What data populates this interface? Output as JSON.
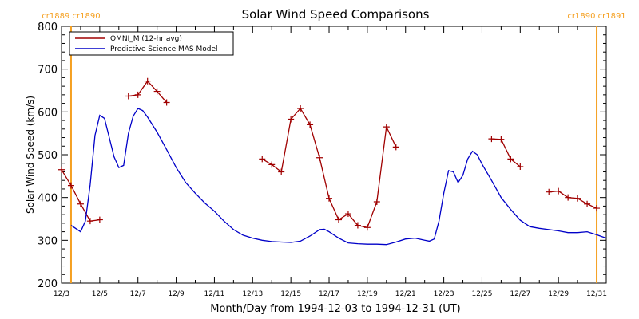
{
  "chart_data": {
    "type": "line",
    "title": "Solar Wind Speed Comparisons",
    "xlabel": "Month/Day from 1994-12-03 to 1994-12-31 (UT)",
    "ylabel": "Solar Wind Speed (km/s)",
    "xlim": [
      "1994-12-03T00:00",
      "1994-12-31T12:00"
    ],
    "ylim": [
      200,
      800
    ],
    "x_tick_labels": [
      "12/3",
      "12/5",
      "12/7",
      "12/9",
      "12/11",
      "12/13",
      "12/15",
      "12/17",
      "12/19",
      "12/21",
      "12/23",
      "12/25",
      "12/27",
      "12/29",
      "12/31"
    ],
    "x_tick_dates": [
      "1994-12-03",
      "1994-12-05",
      "1994-12-07",
      "1994-12-09",
      "1994-12-11",
      "1994-12-13",
      "1994-12-15",
      "1994-12-17",
      "1994-12-19",
      "1994-12-21",
      "1994-12-23",
      "1994-12-25",
      "1994-12-27",
      "1994-12-29",
      "1994-12-31"
    ],
    "y_ticks": [
      200,
      300,
      400,
      500,
      600,
      700,
      800
    ],
    "legend_position": "top-left",
    "carrington_rotations": [
      {
        "label": "cr1889 cr1890",
        "x": "1994-12-03T12:00",
        "color": "#f5a021"
      },
      {
        "label": "cr1890 cr1891",
        "x": "1994-12-31T00:00",
        "color": "#f5a021"
      }
    ],
    "series": [
      {
        "name": "OMNI_M (12-hr avg)",
        "color": "#a00000",
        "marker": "plus",
        "segments": [
          [
            [
              "1994-12-03T00:00",
              465
            ],
            [
              "1994-12-03T12:00",
              428
            ],
            [
              "1994-12-04T00:00",
              385
            ],
            [
              "1994-12-04T12:00",
              345
            ],
            [
              "1994-12-05T00:00",
              348
            ]
          ],
          [
            [
              "1994-12-06T12:00",
              637
            ],
            [
              "1994-12-07T00:00",
              640
            ],
            [
              "1994-12-07T12:00",
              672
            ],
            [
              "1994-12-08T00:00",
              648
            ],
            [
              "1994-12-08T12:00",
              622
            ]
          ],
          [
            [
              "1994-12-13T12:00",
              490
            ],
            [
              "1994-12-14T00:00",
              477
            ],
            [
              "1994-12-14T12:00",
              460
            ],
            [
              "1994-12-15T00:00",
              583
            ],
            [
              "1994-12-15T12:00",
              608
            ],
            [
              "1994-12-16T00:00",
              570
            ],
            [
              "1994-12-16T12:00",
              493
            ],
            [
              "1994-12-17T00:00",
              398
            ],
            [
              "1994-12-17T12:00",
              348
            ],
            [
              "1994-12-18T00:00",
              362
            ],
            [
              "1994-12-18T12:00",
              335
            ],
            [
              "1994-12-19T00:00",
              330
            ],
            [
              "1994-12-19T12:00",
              390
            ],
            [
              "1994-12-20T00:00",
              565
            ],
            [
              "1994-12-20T12:00",
              518
            ]
          ],
          [
            [
              "1994-12-25T12:00",
              537
            ],
            [
              "1994-12-26T00:00",
              536
            ],
            [
              "1994-12-26T12:00",
              490
            ],
            [
              "1994-12-27T00:00",
              472
            ]
          ],
          [
            [
              "1994-12-28T12:00",
              413
            ],
            [
              "1994-12-29T00:00",
              415
            ],
            [
              "1994-12-29T12:00",
              400
            ],
            [
              "1994-12-30T00:00",
              398
            ],
            [
              "1994-12-30T12:00",
              385
            ],
            [
              "1994-12-31T00:00",
              375
            ]
          ]
        ]
      },
      {
        "name": "Predictive Science MAS Model",
        "color": "#0000c8",
        "marker": "none",
        "segments": [
          [
            [
              "1994-12-03T12:00",
              335
            ],
            [
              "1994-12-04T00:00",
              320
            ],
            [
              "1994-12-04T06:00",
              345
            ],
            [
              "1994-12-04T12:00",
              430
            ],
            [
              "1994-12-04T18:00",
              545
            ],
            [
              "1994-12-05T00:00",
              592
            ],
            [
              "1994-12-05T06:00",
              585
            ],
            [
              "1994-12-05T12:00",
              540
            ],
            [
              "1994-12-05T18:00",
              495
            ],
            [
              "1994-12-06T00:00",
              470
            ],
            [
              "1994-12-06T06:00",
              475
            ],
            [
              "1994-12-06T12:00",
              550
            ],
            [
              "1994-12-06T18:00",
              590
            ],
            [
              "1994-12-07T00:00",
              608
            ],
            [
              "1994-12-07T06:00",
              603
            ],
            [
              "1994-12-07T12:00",
              588
            ],
            [
              "1994-12-08T00:00",
              553
            ],
            [
              "1994-12-08T12:00",
              512
            ],
            [
              "1994-12-09T00:00",
              470
            ],
            [
              "1994-12-09T12:00",
              435
            ],
            [
              "1994-12-10T00:00",
              410
            ],
            [
              "1994-12-10T12:00",
              387
            ],
            [
              "1994-12-11T00:00",
              368
            ],
            [
              "1994-12-11T12:00",
              345
            ],
            [
              "1994-12-12T00:00",
              325
            ],
            [
              "1994-12-12T12:00",
              312
            ],
            [
              "1994-12-13T00:00",
              305
            ],
            [
              "1994-12-13T12:00",
              300
            ],
            [
              "1994-12-14T00:00",
              297
            ],
            [
              "1994-12-14T12:00",
              296
            ],
            [
              "1994-12-15T00:00",
              295
            ],
            [
              "1994-12-15T12:00",
              298
            ],
            [
              "1994-12-16T00:00",
              310
            ],
            [
              "1994-12-16T12:00",
              325
            ],
            [
              "1994-12-16T18:00",
              326
            ],
            [
              "1994-12-17T00:00",
              320
            ],
            [
              "1994-12-17T12:00",
              305
            ],
            [
              "1994-12-18T00:00",
              294
            ],
            [
              "1994-12-18T12:00",
              292
            ],
            [
              "1994-12-19T00:00",
              291
            ],
            [
              "1994-12-19T12:00",
              291
            ],
            [
              "1994-12-20T00:00",
              290
            ],
            [
              "1994-12-20T12:00",
              296
            ],
            [
              "1994-12-21T00:00",
              303
            ],
            [
              "1994-12-21T12:00",
              305
            ],
            [
              "1994-12-22T00:00",
              300
            ],
            [
              "1994-12-22T06:00",
              298
            ],
            [
              "1994-12-22T12:00",
              303
            ],
            [
              "1994-12-22T18:00",
              345
            ],
            [
              "1994-12-23T00:00",
              410
            ],
            [
              "1994-12-23T06:00",
              463
            ],
            [
              "1994-12-23T12:00",
              460
            ],
            [
              "1994-12-23T18:00",
              435
            ],
            [
              "1994-12-24T00:00",
              452
            ],
            [
              "1994-12-24T06:00",
              490
            ],
            [
              "1994-12-24T12:00",
              508
            ],
            [
              "1994-12-24T18:00",
              500
            ],
            [
              "1994-12-25T00:00",
              478
            ],
            [
              "1994-12-25T12:00",
              440
            ],
            [
              "1994-12-26T00:00",
              400
            ],
            [
              "1994-12-26T12:00",
              372
            ],
            [
              "1994-12-27T00:00",
              347
            ],
            [
              "1994-12-27T12:00",
              332
            ],
            [
              "1994-12-28T00:00",
              328
            ],
            [
              "1994-12-28T12:00",
              325
            ],
            [
              "1994-12-29T00:00",
              322
            ],
            [
              "1994-12-29T12:00",
              318
            ],
            [
              "1994-12-30T00:00",
              318
            ],
            [
              "1994-12-30T12:00",
              320
            ],
            [
              "1994-12-31T00:00",
              313
            ],
            [
              "1994-12-31T12:00",
              305
            ]
          ]
        ]
      }
    ]
  }
}
